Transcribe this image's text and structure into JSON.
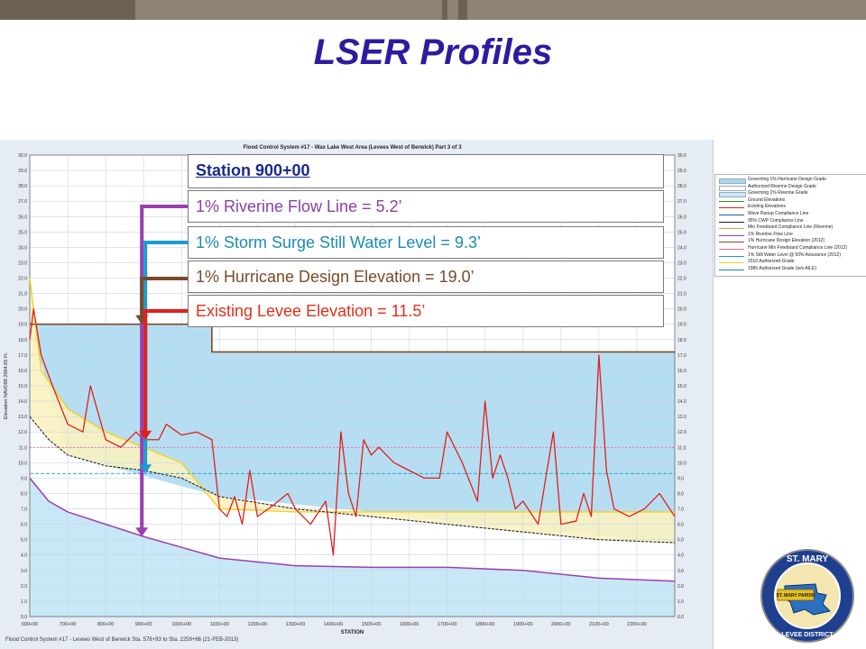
{
  "slide": {
    "title": "LSER Profiles"
  },
  "chart_data": {
    "type": "line",
    "title": "Flood Control System #17 - Wax Lake West Area (Levees West of Berwick) Part 3 of 3",
    "xlabel": "STATION",
    "ylabel": "Elevation NAVD88 2004.65 Ft.",
    "ylim": [
      0,
      30
    ],
    "xlim": [
      600,
      2300
    ],
    "yticks": [
      "0.0",
      "1.0",
      "2.0",
      "3.0",
      "4.0",
      "5.0",
      "6.0",
      "7.0",
      "8.0",
      "9.0",
      "10.0",
      "11.0",
      "12.0",
      "13.0",
      "14.0",
      "15.0",
      "16.0",
      "17.0",
      "18.0",
      "19.0",
      "20.0",
      "21.0",
      "22.0",
      "23.0",
      "24.0",
      "25.0",
      "26.0",
      "27.0",
      "28.0",
      "29.0",
      "30.0"
    ],
    "xticks": [
      "600+00",
      "700+00",
      "800+00",
      "900+00",
      "1000+00",
      "1100+00",
      "1200+00",
      "1300+00",
      "1400+00",
      "1500+00",
      "1600+00",
      "1700+00",
      "1800+00",
      "1900+00",
      "2000+00",
      "2100+00",
      "2200+00"
    ],
    "footnote": "Flood Control System #17 - Levees West of Berwick Sta. 578+93 to Sta. 2259+66 (21-FEB-2013)",
    "colors": {
      "existing": "#e0201a",
      "hurricane_design": "#7a4a2a",
      "storm_surge": "#1b9bd0",
      "riverine_flow": "#9b3fb0",
      "authorized_2010": "#f2d31a",
      "ground": "#2e9e3a",
      "wave_runup": "#1a5fa8",
      "freeboard": "#e46aa0",
      "cwp": "#222222",
      "design_fill": "#a9d8f0",
      "riverine_fill": "#c9e8f7",
      "authorized_fill": "#fbf2c0"
    },
    "series": [
      {
        "name": "1% Hurricane Design Elevation (2012)",
        "x": [
          600,
          700,
          700,
          960,
          960,
          1080,
          1080,
          2300
        ],
        "values": [
          19.0,
          19.0,
          19.0,
          19.0,
          19.0,
          19.0,
          17.2,
          17.2
        ]
      },
      {
        "name": "2010 Authorized Grade",
        "x": [
          600,
          630,
          700,
          800,
          900,
          1000,
          1100,
          1300,
          1600,
          1900,
          2100,
          2300
        ],
        "values": [
          22.0,
          16.0,
          13.5,
          12.0,
          11.0,
          10.0,
          7.0,
          6.8,
          6.8,
          6.8,
          6.8,
          6.8
        ]
      },
      {
        "name": "95% CWP Compliance Line",
        "x": [
          600,
          650,
          700,
          800,
          900,
          1000,
          1100,
          1300,
          1500,
          1700,
          1900,
          2100,
          2300
        ],
        "values": [
          13.0,
          11.5,
          10.5,
          9.8,
          9.5,
          9.0,
          7.8,
          7.0,
          6.5,
          6.0,
          5.5,
          5.0,
          4.8
        ]
      },
      {
        "name": "1% Storm Surge Still Water Level @ 50% Assurance (2012)",
        "x": [
          600,
          700,
          800,
          900,
          1000,
          1200,
          1500,
          1800,
          2100,
          2300
        ],
        "values": [
          9.3,
          9.3,
          9.3,
          9.3,
          9.3,
          9.3,
          9.3,
          9.3,
          9.3,
          9.3
        ]
      },
      {
        "name": "Hurricane Min Freeboard Compliance Line (2012)",
        "x": [
          600,
          2300
        ],
        "values": [
          11.0,
          11.0
        ]
      },
      {
        "name": "1% Riverine Flow Line",
        "x": [
          600,
          650,
          700,
          800,
          900,
          1000,
          1100,
          1300,
          1500,
          1700,
          1900,
          2100,
          2300
        ],
        "values": [
          9.0,
          7.5,
          6.8,
          6.0,
          5.2,
          4.5,
          3.8,
          3.3,
          3.2,
          3.2,
          3.0,
          2.5,
          2.3
        ]
      },
      {
        "name": "Existing Elevations",
        "x": [
          600,
          610,
          630,
          660,
          700,
          740,
          760,
          800,
          840,
          880,
          900,
          940,
          960,
          1000,
          1040,
          1080,
          1100,
          1120,
          1140,
          1160,
          1180,
          1200,
          1240,
          1280,
          1300,
          1340,
          1380,
          1400,
          1420,
          1440,
          1460,
          1480,
          1500,
          1520,
          1560,
          1600,
          1640,
          1680,
          1700,
          1740,
          1780,
          1800,
          1820,
          1840,
          1860,
          1880,
          1900,
          1940,
          1980,
          2000,
          2040,
          2060,
          2080,
          2100,
          2120,
          2140,
          2180,
          2220,
          2260,
          2300
        ],
        "values": [
          18.0,
          20.0,
          17.0,
          15.0,
          12.5,
          12.0,
          15.0,
          11.5,
          11.0,
          12.0,
          11.5,
          11.5,
          12.5,
          11.8,
          12.0,
          11.5,
          7.0,
          6.5,
          7.8,
          6.0,
          9.5,
          6.5,
          7.2,
          8.0,
          7.0,
          6.0,
          7.5,
          4.0,
          12.0,
          8.0,
          6.5,
          11.5,
          10.5,
          11.0,
          10.0,
          9.5,
          9.0,
          9.0,
          12.0,
          10.0,
          7.5,
          14.0,
          9.0,
          10.5,
          9.0,
          7.0,
          7.5,
          6.0,
          12.0,
          6.0,
          6.2,
          8.0,
          6.5,
          17.0,
          9.5,
          7.0,
          6.5,
          7.0,
          8.0,
          6.5
        ]
      }
    ],
    "callouts": {
      "station": "Station 900+00",
      "riverine": "1% Riverine Flow Line = 5.2’",
      "storm_surge": "1% Storm Surge Still Water Level = 9.3’",
      "hurricane": "1% Hurricane Design Elevation = 19.0’",
      "existing": "Existing Levee Elevation = 11.5’"
    },
    "legend": [
      {
        "label": "Governing 1% Hurricane Design Grade",
        "color": "#a9d8f0",
        "kind": "fill"
      },
      {
        "label": "Authorized Riverine Design Grade",
        "color": "#ffffff",
        "kind": "fill"
      },
      {
        "label": "Governing 1% Riverine Grade",
        "color": "#c9e8f7",
        "kind": "fill"
      },
      {
        "label": "Ground Elevations",
        "color": "#2e9e3a",
        "kind": "line"
      },
      {
        "label": "Existing Elevations",
        "color": "#e0201a",
        "kind": "line"
      },
      {
        "label": "Wave Runup Compliance Line",
        "color": "#1a5fa8",
        "kind": "line"
      },
      {
        "label": "95% CWP Compliance Line",
        "color": "#222222",
        "kind": "line"
      },
      {
        "label": "Min Freeboard Compliance Line (Riverine)",
        "color": "#e6a04a",
        "kind": "line"
      },
      {
        "label": "1% Riverine Flow Line",
        "color": "#9b3fb0",
        "kind": "line"
      },
      {
        "label": "1% Hurricane Design Elevation (2012)",
        "color": "#7a4a2a",
        "kind": "line"
      },
      {
        "label": "Hurricane Min Freeboard Compliance Line (2012)",
        "color": "#e46aa0",
        "kind": "line"
      },
      {
        "label": "1% Still Water Level @ 50% Assurance (2012)",
        "color": "#1b9bd0",
        "kind": "line"
      },
      {
        "label": "2010 Authorized Grade",
        "color": "#f2d31a",
        "kind": "line"
      },
      {
        "label": "1986 Authorized Grade (w/o AILE)",
        "color": "#2a7ec8",
        "kind": "line"
      }
    ]
  },
  "logo": {
    "top_text": "ST. MARY",
    "banner": "ST. MARY PARISH",
    "bottom_text": "LEVEE DISTRICT"
  }
}
